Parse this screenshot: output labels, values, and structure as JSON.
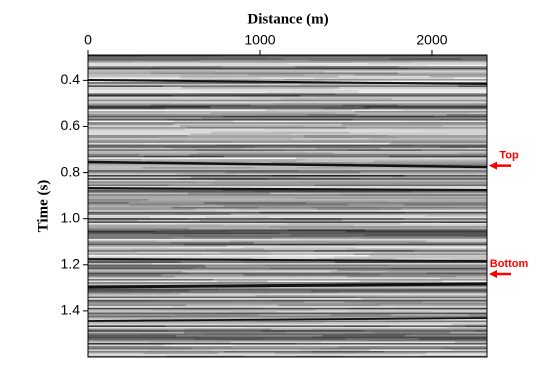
{
  "chart_data": {
    "type": "image",
    "xlabel": "Distance (m)",
    "ylabel": "Time (s)",
    "xlim": [
      0,
      2320
    ],
    "xticks": [
      0,
      1000,
      2000
    ],
    "ylim": [
      1.6,
      0.29
    ],
    "yticks": [
      0.4,
      0.6,
      0.8,
      {
        "value": 1,
        "label": "1.0"
      },
      1.2,
      1.4
    ],
    "annotations": [
      {
        "text": "Top",
        "y": 0.77,
        "color": "#ff0000"
      },
      {
        "text": "Bottom",
        "y": 1.24,
        "color": "#ff0000"
      }
    ]
  }
}
